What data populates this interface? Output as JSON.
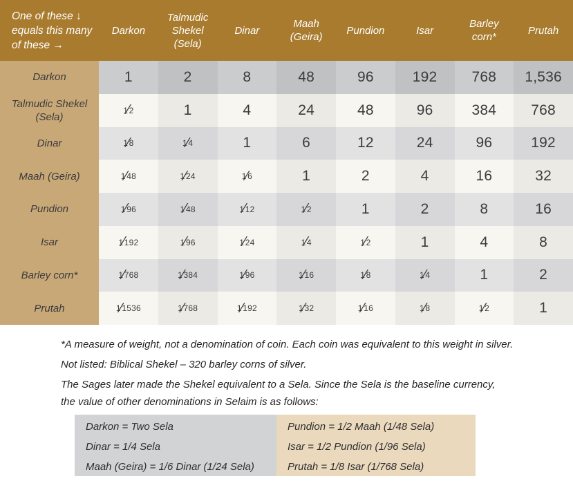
{
  "chart_data": {
    "type": "table",
    "corner_header": "One of these ↓\nequals this many\nof these →",
    "columns": [
      "Darkon",
      "Talmudic Shekel (Sela)",
      "Dinar",
      "Maah (Geira)",
      "Pundion",
      "Isar",
      "Barley corn*",
      "Prutah"
    ],
    "columns_display": [
      "Darkon",
      "Talmudic\nShekel\n(Sela)",
      "Dinar",
      "Maah\n(Geira)",
      "Pundion",
      "Isar",
      "Barley\ncorn*",
      "Prutah"
    ],
    "rows": [
      {
        "label": "Darkon",
        "values": [
          "1",
          "2",
          "8",
          "48",
          "96",
          "192",
          "768",
          "1,536"
        ]
      },
      {
        "label": "Talmudic Shekel (Sela)",
        "values": [
          "1/2",
          "1",
          "4",
          "24",
          "48",
          "96",
          "384",
          "768"
        ]
      },
      {
        "label": "Dinar",
        "values": [
          "1/8",
          "1/4",
          "1",
          "6",
          "12",
          "24",
          "96",
          "192"
        ]
      },
      {
        "label": "Maah (Geira)",
        "values": [
          "1/48",
          "1/24",
          "1/6",
          "1",
          "2",
          "4",
          "16",
          "32"
        ]
      },
      {
        "label": "Pundion",
        "values": [
          "1/96",
          "1/48",
          "1/12",
          "1/2",
          "1",
          "2",
          "8",
          "16"
        ]
      },
      {
        "label": "Isar",
        "values": [
          "1/192",
          "1/96",
          "1/24",
          "1/4",
          "1/2",
          "1",
          "4",
          "8"
        ]
      },
      {
        "label": "Barley corn*",
        "values": [
          "1/768",
          "1/384",
          "1/96",
          "1/16",
          "1/8",
          "1/4",
          "1",
          "2"
        ]
      },
      {
        "label": "Prutah",
        "values": [
          "1/1536",
          "1/768",
          "1/192",
          "1/32",
          "1/16",
          "1/8",
          "1/2",
          "1"
        ]
      }
    ]
  },
  "notes": {
    "weight": "*A measure of weight, not a denomination of coin. Each coin was equivalent to this weight in silver.",
    "biblical_shekel": "Not listed: Biblical Shekel – 320 barley corns of silver.",
    "sages": "The Sages later made the Shekel equivalent to a Sela. Since the Sela is the baseline currency,\nthe value of other denominations in Selaim is as follows:"
  },
  "legend": {
    "left": [
      "Darkon = Two Sela",
      "Dinar = 1/4 Sela",
      "Maah (Geira) = 1/6 Dinar (1/24 Sela)"
    ],
    "right": [
      "Pundion = 1/2 Maah (1/48 Sela)",
      "Isar = 1/2 Pundion (1/96 Sela)",
      "Prutah = 1/8 Isar (1/768 Sela)"
    ]
  },
  "colors": {
    "header_brown": "#a87b2e",
    "header_text": "#ffffff",
    "row_label_tan": "#c9a878",
    "first_row_light": "#cbccce",
    "first_row_dark": "#c0c1c3",
    "gray_row_light": "#e2e2e3",
    "gray_row_dark": "#d7d7d9",
    "cream_row_light": "#f8f6f0",
    "cream_row_dark": "#ebeae5",
    "legend_gray": "#d2d3d5",
    "legend_tan": "#ebd9be",
    "text_dark": "#3b3b3b"
  }
}
